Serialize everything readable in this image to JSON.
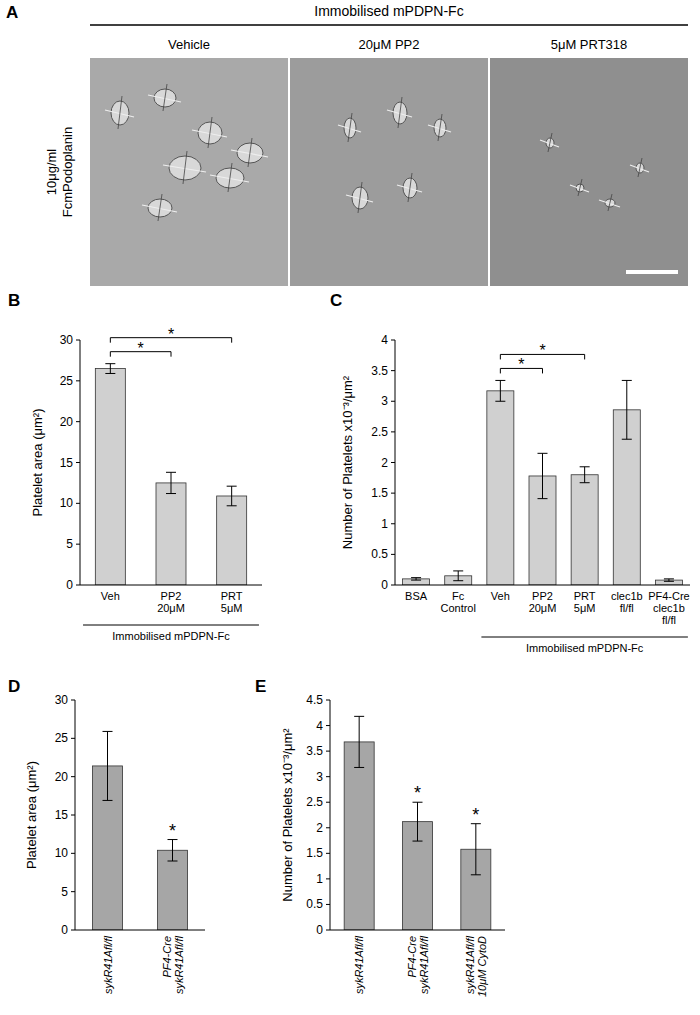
{
  "panel_a": {
    "label": "A",
    "header": "Immobilised mPDPN-Fc",
    "row_label": "10μg/ml\nFcmPodoplanin",
    "columns": [
      "Vehicle",
      "20μM PP2",
      "5μM PRT318"
    ]
  },
  "chart_data": [
    {
      "type": "bar",
      "title": "B",
      "y_label": "Platelet area (μm²)",
      "categories": [
        "Veh",
        "PP2\n20μM",
        "PRT\n5μM"
      ],
      "values": [
        26.5,
        12.5,
        10.9
      ],
      "errors": [
        0.6,
        1.3,
        1.2
      ],
      "color": "#d0d0d0",
      "ylim": [
        0,
        30
      ],
      "yticks": [
        0,
        5,
        10,
        15,
        20,
        25,
        30
      ],
      "group_label": {
        "text": "Immobilised mPDPN-Fc",
        "categories": [
          "Veh",
          "PRT\n5μM"
        ]
      },
      "annotations": [
        {
          "text": "*",
          "between": [
            "Veh",
            "PP2\n20μM"
          ]
        },
        {
          "text": "*",
          "between": [
            "Veh",
            "PRT\n5μM"
          ]
        }
      ]
    },
    {
      "type": "bar",
      "title": "C",
      "y_label": "Number of Platelets x10⁻³/μm²",
      "categories": [
        "BSA",
        "Fc\nControl",
        "Veh",
        "PP2\n20μM",
        "PRT\n5μM",
        "clec1b\nfl/fl",
        "PF4-Cre\nclec1b\nfl/fl"
      ],
      "values": [
        0.1,
        0.15,
        3.17,
        1.78,
        1.8,
        2.86,
        0.08
      ],
      "errors": [
        0.02,
        0.08,
        0.17,
        0.37,
        0.13,
        0.48,
        0.02
      ],
      "color": "#d0d0d0",
      "ylim": [
        0,
        4
      ],
      "yticks": [
        0,
        0.5,
        1,
        1.5,
        2,
        2.5,
        3,
        3.5,
        4
      ],
      "group_label": {
        "text": "Immobilised mPDPN-Fc",
        "categories": [
          "Veh",
          "PF4-Cre\nclec1b\nfl/fl"
        ]
      },
      "annotations": [
        {
          "text": "*",
          "between": [
            "Veh",
            "PP2\n20μM"
          ]
        },
        {
          "text": "*",
          "between": [
            "Veh",
            "PRT\n5μM"
          ]
        }
      ]
    },
    {
      "type": "bar",
      "title": "D",
      "y_label": "Platelet area (μm²)",
      "categories": [
        "sykR41Afl/fl",
        "PF4-Cre\nsykR41Afl/fl"
      ],
      "values": [
        21.4,
        10.4
      ],
      "errors": [
        4.5,
        1.4
      ],
      "color": "#a6a6a6",
      "ylim": [
        0,
        30
      ],
      "yticks": [
        0,
        5,
        10,
        15,
        20,
        25,
        30
      ],
      "annotations": [
        {
          "text": "*",
          "category": "PF4-Cre\nsykR41Afl/fl"
        }
      ]
    },
    {
      "type": "bar",
      "title": "E",
      "y_label": "Number of Platelets x10⁻³/μm²",
      "categories": [
        "sykR41Afl/fl",
        "PF4-Cre\nsykR41Afl/fl",
        "sykR41Afl/fl\n10μM CytoD"
      ],
      "values": [
        3.68,
        2.12,
        1.58
      ],
      "errors": [
        0.5,
        0.38,
        0.5
      ],
      "color": "#a6a6a6",
      "ylim": [
        0,
        4.5
      ],
      "yticks": [
        0,
        0.5,
        1,
        1.5,
        2,
        2.5,
        3,
        3.5,
        4,
        4.5
      ],
      "annotations": [
        {
          "text": "*",
          "category": "PF4-Cre\nsykR41Afl/fl"
        },
        {
          "text": "*",
          "category": "sykR41Afl/fl\n10μM CytoD"
        }
      ]
    }
  ]
}
